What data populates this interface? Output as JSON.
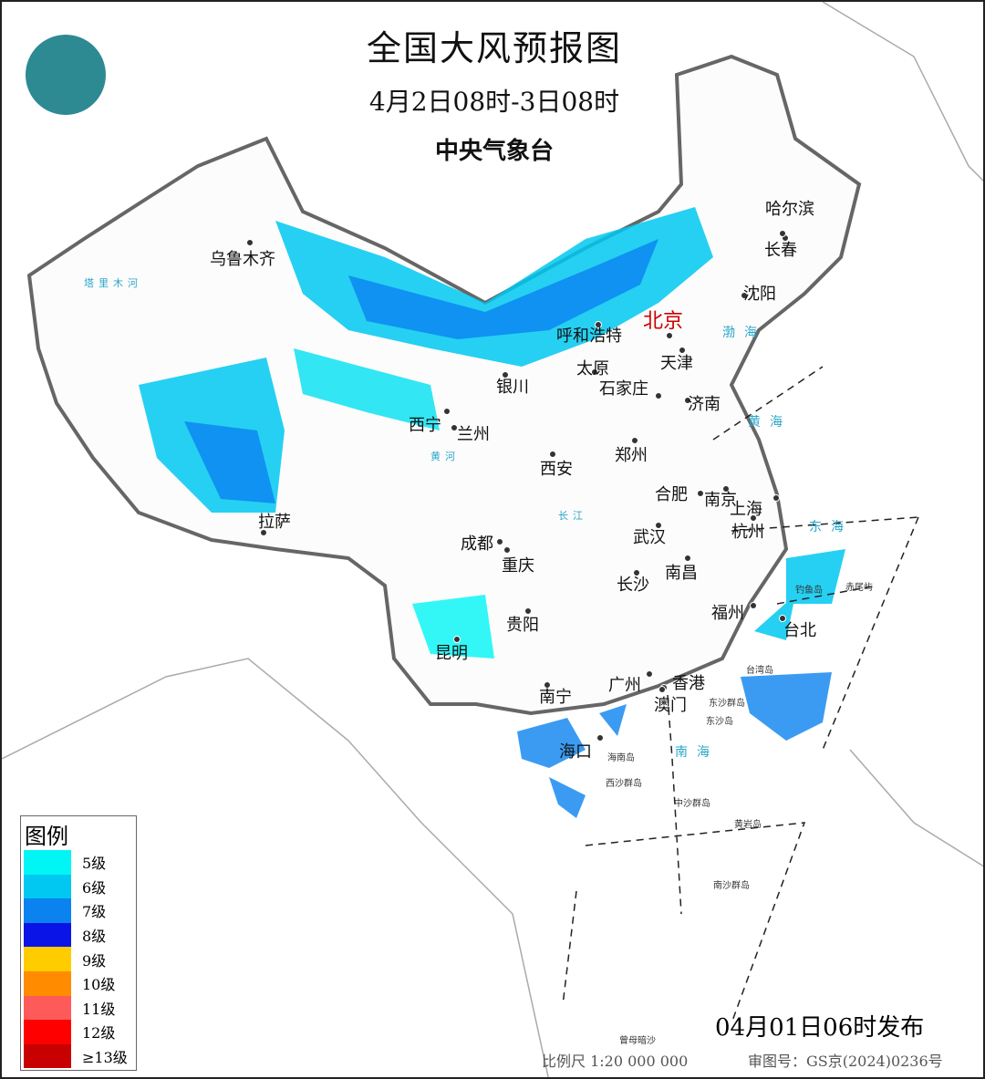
{
  "header": {
    "title": "全国大风预报图",
    "period": "4月2日08时-3日08时",
    "issuer": "中央气象台"
  },
  "logo": {
    "icon": "cma-logo"
  },
  "cities": [
    "乌鲁木齐",
    "哈尔滨",
    "长春",
    "沈阳",
    "北京",
    "呼和浩特",
    "天津",
    "银川",
    "太原",
    "石家庄",
    "济南",
    "西宁",
    "兰州",
    "郑州",
    "西安",
    "合肥",
    "南京",
    "上海",
    "拉萨",
    "成都",
    "武汉",
    "杭州",
    "重庆",
    "南昌",
    "长沙",
    "福州",
    "台北",
    "贵阳",
    "昆明",
    "南宁",
    "广州",
    "香港",
    "澳门",
    "海口"
  ],
  "seas": [
    "渤海",
    "黄海",
    "东海",
    "南海"
  ],
  "islands": [
    "钓鱼岛",
    "赤尾屿",
    "台湾岛",
    "东沙群岛",
    "东沙岛",
    "海南岛",
    "西沙群岛",
    "中沙群岛",
    "黄岩岛",
    "南沙群岛",
    "曾母暗沙"
  ],
  "rivers": [
    "塔里木河",
    "黄河",
    "长江"
  ],
  "legend": {
    "title": "图例",
    "items": [
      {
        "label": "5级",
        "color": "#00f5f5"
      },
      {
        "label": "6级",
        "color": "#00c8f0"
      },
      {
        "label": "7级",
        "color": "#0a82f0"
      },
      {
        "label": "8级",
        "color": "#0a14e6"
      },
      {
        "label": "9级",
        "color": "#ffcc00"
      },
      {
        "label": "10级",
        "color": "#ff8c00"
      },
      {
        "label": "11级",
        "color": "#ff5a5a"
      },
      {
        "label": "12级",
        "color": "#ff0000"
      },
      {
        "label": "≥13级",
        "color": "#c80000"
      }
    ]
  },
  "footer": {
    "issued": "04月01日06时发布",
    "scale": "比例尺 1:20 000 000",
    "review": "审图号：GS京(2024)0236号"
  },
  "capital_color": "#cc0000"
}
